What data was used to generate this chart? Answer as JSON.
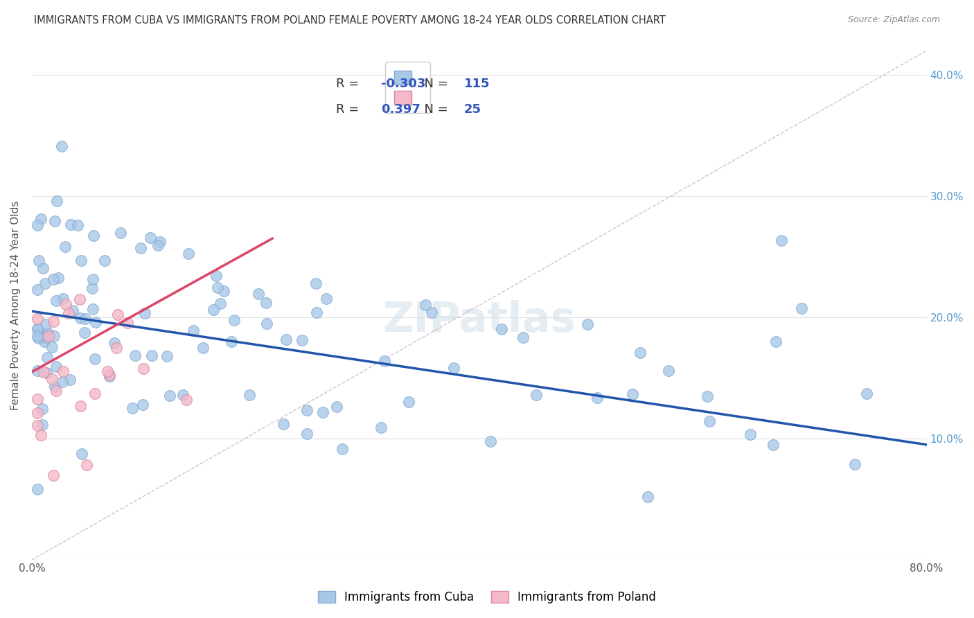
{
  "title": "IMMIGRANTS FROM CUBA VS IMMIGRANTS FROM POLAND FEMALE POVERTY AMONG 18-24 YEAR OLDS CORRELATION CHART",
  "source": "Source: ZipAtlas.com",
  "ylabel": "Female Poverty Among 18-24 Year Olds",
  "xlim": [
    0.0,
    0.8
  ],
  "ylim": [
    0.0,
    0.42
  ],
  "xticks": [
    0.0,
    0.8
  ],
  "xticklabels": [
    "0.0%",
    "80.0%"
  ],
  "yticks": [
    0.0,
    0.1,
    0.2,
    0.3,
    0.4
  ],
  "yticklabels_left": [
    "",
    "",
    "",
    "",
    ""
  ],
  "yticklabels_right": [
    "",
    "10.0%",
    "20.0%",
    "30.0%",
    "40.0%"
  ],
  "cuba_color": "#a8c8e8",
  "cuba_edge_color": "#88aad0",
  "poland_color": "#f4b8c8",
  "poland_edge_color": "#d888a0",
  "cuba_line_color": "#2255aa",
  "poland_line_color": "#dd4466",
  "ref_line_color": "#ccbbcc",
  "watermark_color": "#d0dde8",
  "R_cuba": -0.303,
  "N_cuba": 115,
  "R_poland": 0.397,
  "N_poland": 25,
  "cuba_line_x0": 0.0,
  "cuba_line_y0": 0.205,
  "cuba_line_x1": 0.8,
  "cuba_line_y1": 0.095,
  "poland_line_x0": 0.0,
  "poland_line_y0": 0.155,
  "poland_line_x1": 0.215,
  "poland_line_y1": 0.265,
  "ref_line_x0": 0.0,
  "ref_line_y0": 0.0,
  "ref_line_x1": 0.8,
  "ref_line_y1": 0.42,
  "background_color": "#ffffff",
  "grid_color": "#e0e0e0",
  "tick_color": "#5599cc",
  "title_color": "#333333",
  "source_color": "#888888",
  "ylabel_color": "#555555"
}
